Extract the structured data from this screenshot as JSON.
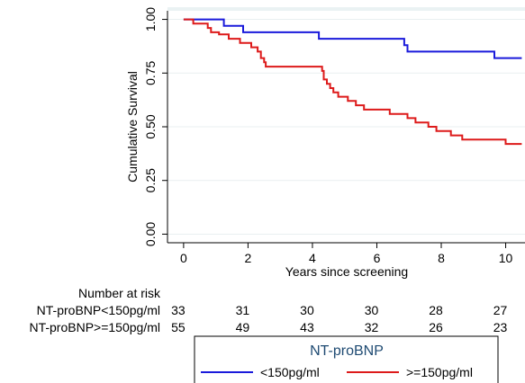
{
  "chart_data": {
    "type": "line",
    "subtype": "kaplan-meier",
    "title": "",
    "xlabel": "Years since screening",
    "ylabel": "Cumulative Survival",
    "xlim": [
      -0.5,
      10.6
    ],
    "ylim": [
      -0.04,
      1.04
    ],
    "x_ticks": [
      "0",
      "2",
      "4",
      "6",
      "8",
      "10"
    ],
    "x_tick_values": [
      0,
      2,
      4,
      6,
      8,
      10
    ],
    "y_ticks": [
      "0.00",
      "0.25",
      "0.50",
      "0.75",
      "1.00"
    ],
    "y_tick_values": [
      0,
      0.25,
      0.5,
      0.75,
      1.0
    ],
    "grid": true,
    "series": [
      {
        "name": "<150pg/ml",
        "color": "#1a1adb",
        "points": [
          [
            0,
            1.0
          ],
          [
            1.25,
            1.0
          ],
          [
            1.25,
            0.97
          ],
          [
            1.85,
            0.97
          ],
          [
            1.85,
            0.94
          ],
          [
            4.2,
            0.94
          ],
          [
            4.2,
            0.91
          ],
          [
            6.85,
            0.91
          ],
          [
            6.85,
            0.88
          ],
          [
            6.95,
            0.88
          ],
          [
            6.95,
            0.85
          ],
          [
            9.65,
            0.85
          ],
          [
            9.65,
            0.82
          ],
          [
            10.5,
            0.82
          ]
        ]
      },
      {
        "name": ">=150pg/ml",
        "color": "#dd1a1a",
        "points": [
          [
            0,
            1.0
          ],
          [
            0.3,
            1.0
          ],
          [
            0.3,
            0.98
          ],
          [
            0.75,
            0.98
          ],
          [
            0.75,
            0.96
          ],
          [
            0.85,
            0.96
          ],
          [
            0.85,
            0.94
          ],
          [
            1.1,
            0.94
          ],
          [
            1.1,
            0.93
          ],
          [
            1.4,
            0.93
          ],
          [
            1.4,
            0.91
          ],
          [
            1.75,
            0.91
          ],
          [
            1.75,
            0.89
          ],
          [
            2.1,
            0.89
          ],
          [
            2.1,
            0.87
          ],
          [
            2.3,
            0.87
          ],
          [
            2.3,
            0.85
          ],
          [
            2.4,
            0.85
          ],
          [
            2.4,
            0.82
          ],
          [
            2.5,
            0.82
          ],
          [
            2.5,
            0.8
          ],
          [
            2.55,
            0.8
          ],
          [
            2.55,
            0.78
          ],
          [
            4.3,
            0.78
          ],
          [
            4.3,
            0.76
          ],
          [
            4.35,
            0.76
          ],
          [
            4.35,
            0.72
          ],
          [
            4.45,
            0.72
          ],
          [
            4.45,
            0.7
          ],
          [
            4.55,
            0.7
          ],
          [
            4.55,
            0.68
          ],
          [
            4.65,
            0.68
          ],
          [
            4.65,
            0.66
          ],
          [
            4.8,
            0.66
          ],
          [
            4.8,
            0.64
          ],
          [
            5.1,
            0.64
          ],
          [
            5.1,
            0.62
          ],
          [
            5.35,
            0.62
          ],
          [
            5.35,
            0.6
          ],
          [
            5.6,
            0.6
          ],
          [
            5.6,
            0.58
          ],
          [
            6.4,
            0.58
          ],
          [
            6.4,
            0.56
          ],
          [
            6.95,
            0.56
          ],
          [
            6.95,
            0.54
          ],
          [
            7.2,
            0.54
          ],
          [
            7.2,
            0.52
          ],
          [
            7.6,
            0.52
          ],
          [
            7.6,
            0.5
          ],
          [
            7.85,
            0.5
          ],
          [
            7.85,
            0.48
          ],
          [
            8.3,
            0.48
          ],
          [
            8.3,
            0.46
          ],
          [
            8.65,
            0.46
          ],
          [
            8.65,
            0.44
          ],
          [
            10.0,
            0.44
          ],
          [
            10.0,
            0.42
          ],
          [
            10.5,
            0.42
          ]
        ]
      }
    ],
    "risk_table": {
      "header": "Number at risk",
      "rows": [
        {
          "label": "NT-proBNP<150pg/ml",
          "values": [
            "33",
            "31",
            "30",
            "30",
            "28",
            "27"
          ]
        },
        {
          "label": "NT-proBNP>=150pg/ml",
          "values": [
            "55",
            "49",
            "43",
            "32",
            "26",
            "23"
          ]
        }
      ]
    },
    "legend": {
      "title": "NT-proBNP",
      "position": "bottom",
      "entries": [
        {
          "label": "<150pg/ml",
          "color": "#1a1adb"
        },
        {
          "label": ">=150pg/ml",
          "color": "#dd1a1a"
        }
      ]
    }
  }
}
